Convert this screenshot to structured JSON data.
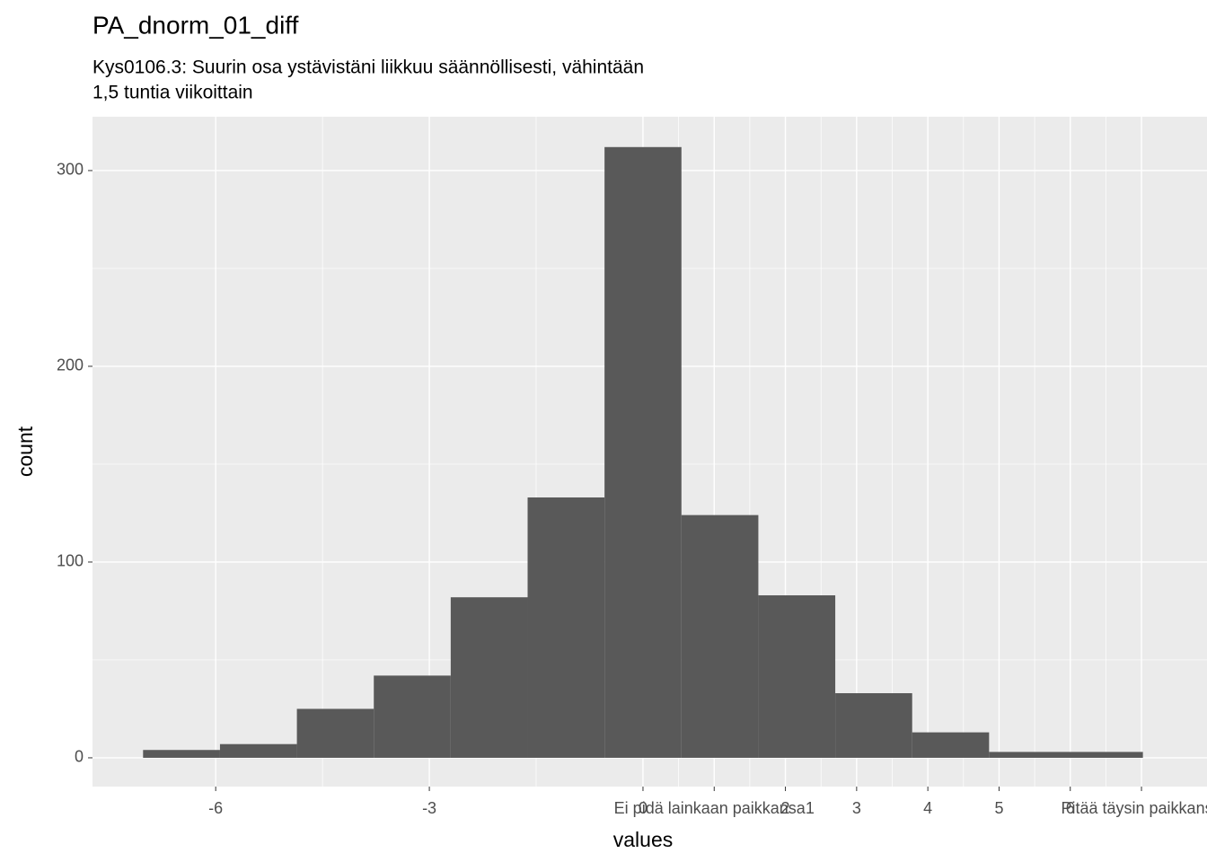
{
  "chart_data": {
    "type": "histogram",
    "title": "PA_dnorm_01_diff",
    "subtitle": [
      "Kys0106.3: Suurin osa ystävistäni liikkuu säännöllisesti, vähintään",
      "1,5 tuntia viikoittain"
    ],
    "x_label": "values",
    "y_label": "count",
    "bins": [
      -7.02,
      -5.94,
      -4.86,
      -3.78,
      -2.7,
      -1.62,
      -0.54,
      0.54,
      1.62,
      2.7,
      3.78,
      4.86,
      5.94,
      7.02
    ],
    "values": [
      4,
      7,
      25,
      42,
      82,
      133,
      312,
      124,
      83,
      33,
      13,
      3,
      3
    ],
    "color": "#595959",
    "xlim": [
      -7.73,
      7.92
    ],
    "xticks": [
      -6,
      -3,
      0,
      {
        "value": 1,
        "label": "Ei pidä lainkaan paikkansa1"
      },
      2,
      3,
      4,
      5,
      6,
      {
        "value": 7,
        "label": "Pitää täysin paikkansa"
      }
    ],
    "ylim": [
      -14.7,
      327.5
    ],
    "yticks": [
      0,
      100,
      200,
      300
    ],
    "grid": true
  }
}
